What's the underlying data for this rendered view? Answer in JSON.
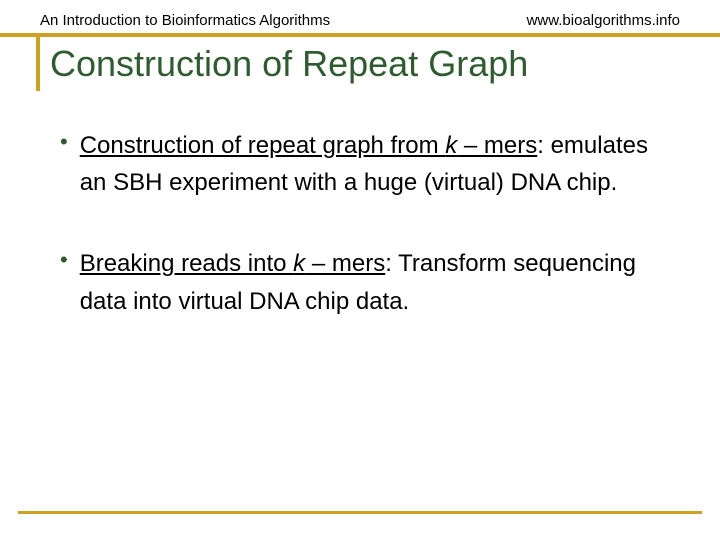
{
  "header": {
    "left": "An Introduction to Bioinformatics Algorithms",
    "right": "www.bioalgorithms.info"
  },
  "title": "Construction of Repeat Graph",
  "bullets": [
    {
      "lead_pre": "Construction of repeat graph from ",
      "lead_k": "k",
      "lead_post": " – mers",
      "rest": ": emulates an SBH experiment with a huge (virtual) DNA chip."
    },
    {
      "lead_pre": "Breaking reads into ",
      "lead_k": "k",
      "lead_post": " – mers",
      "rest": ": Transform sequencing data into virtual DNA chip data."
    }
  ],
  "colors": {
    "accent": "#d0a020",
    "title": "#2e5c2e",
    "text": "#000000",
    "background": "#ffffff"
  }
}
